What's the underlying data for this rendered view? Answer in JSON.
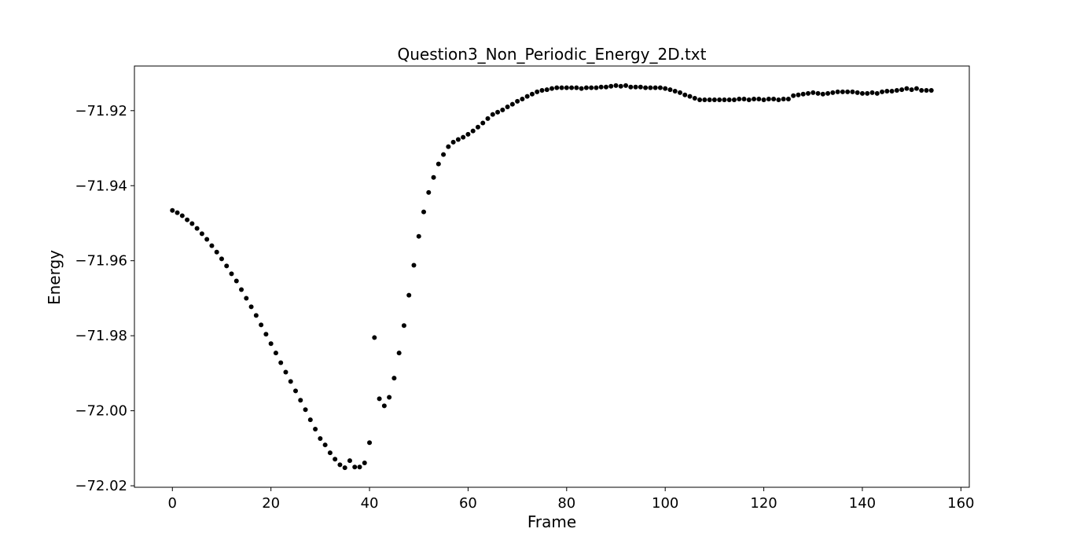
{
  "chart_data": {
    "type": "scatter",
    "title": "Question3_Non_Periodic_Energy_2D.txt",
    "x_label": "Frame",
    "y_label": "Energy",
    "color": "#000000",
    "x": [
      0,
      1,
      2,
      3,
      4,
      5,
      6,
      7,
      8,
      9,
      10,
      11,
      12,
      13,
      14,
      15,
      16,
      17,
      18,
      19,
      20,
      21,
      22,
      23,
      24,
      25,
      26,
      27,
      28,
      29,
      30,
      31,
      32,
      33,
      34,
      35,
      36,
      37,
      38,
      39,
      40,
      41,
      42,
      43,
      44,
      45,
      46,
      47,
      48,
      49,
      50,
      51,
      52,
      53,
      54,
      55,
      56,
      57,
      58,
      59,
      60,
      61,
      62,
      63,
      64,
      65,
      66,
      67,
      68,
      69,
      70,
      71,
      72,
      73,
      74,
      75,
      76,
      77,
      78,
      79,
      80,
      81,
      82,
      83,
      84,
      85,
      86,
      87,
      88,
      89,
      90,
      91,
      92,
      93,
      94,
      95,
      96,
      97,
      98,
      99,
      100,
      101,
      102,
      103,
      104,
      105,
      106,
      107,
      108,
      109,
      110,
      111,
      112,
      113,
      114,
      115,
      116,
      117,
      118,
      119,
      120,
      121,
      122,
      123,
      124,
      125,
      126,
      127,
      128,
      129,
      130,
      131,
      132,
      133,
      134,
      135,
      136,
      137,
      138,
      139,
      140,
      141,
      142,
      143,
      144,
      145,
      146,
      147,
      148,
      149,
      150,
      151,
      152,
      153,
      154
    ],
    "values": [
      -71.9466,
      -71.9472,
      -71.948,
      -71.9491,
      -71.9501,
      -71.9514,
      -71.9528,
      -71.9543,
      -71.956,
      -71.9577,
      -71.9595,
      -71.9614,
      -71.9635,
      -71.9654,
      -71.9677,
      -71.97,
      -71.9723,
      -71.9746,
      -71.9771,
      -71.9796,
      -71.9821,
      -71.9846,
      -71.9872,
      -71.9897,
      -71.9922,
      -71.9947,
      -71.9972,
      -71.9997,
      -72.0024,
      -72.0049,
      -72.0074,
      -72.0091,
      -72.0112,
      -72.0129,
      -72.0144,
      -72.0152,
      -72.0133,
      -72.015,
      -72.015,
      -72.0139,
      -72.0085,
      -71.9805,
      -71.9968,
      -71.9987,
      -71.9964,
      -71.9913,
      -71.9846,
      -71.9773,
      -71.9692,
      -71.9612,
      -71.9535,
      -71.947,
      -71.9418,
      -71.9378,
      -71.9342,
      -71.9317,
      -71.9296,
      -71.9284,
      -71.9277,
      -71.9271,
      -71.9263,
      -71.9254,
      -71.9244,
      -71.9233,
      -71.9221,
      -71.921,
      -71.9204,
      -71.9198,
      -71.919,
      -71.9183,
      -71.9175,
      -71.9169,
      -71.9162,
      -71.9156,
      -71.915,
      -71.9146,
      -71.9144,
      -71.9141,
      -71.9139,
      -71.9139,
      -71.9139,
      -71.9139,
      -71.9139,
      -71.9141,
      -71.9139,
      -71.9139,
      -71.9139,
      -71.9137,
      -71.9137,
      -71.9135,
      -71.9133,
      -71.9135,
      -71.9133,
      -71.9137,
      -71.9137,
      -71.9137,
      -71.9139,
      -71.9139,
      -71.9139,
      -71.9139,
      -71.9141,
      -71.9144,
      -71.9148,
      -71.9152,
      -71.9158,
      -71.9162,
      -71.9167,
      -71.9171,
      -71.9171,
      -71.9171,
      -71.9171,
      -71.9171,
      -71.9171,
      -71.9171,
      -71.9171,
      -71.9169,
      -71.9169,
      -71.9171,
      -71.9169,
      -71.9169,
      -71.9171,
      -71.9169,
      -71.9169,
      -71.9171,
      -71.9169,
      -71.9169,
      -71.916,
      -71.9158,
      -71.9156,
      -71.9154,
      -71.9152,
      -71.9154,
      -71.9156,
      -71.9154,
      -71.9152,
      -71.915,
      -71.915,
      -71.915,
      -71.915,
      -71.9152,
      -71.9154,
      -71.9154,
      -71.9152,
      -71.9154,
      -71.915,
      -71.9148,
      -71.9148,
      -71.9146,
      -71.9144,
      -71.9141,
      -71.9144,
      -71.9141,
      -71.9146,
      -71.9146,
      -71.9146
    ],
    "xlim": [
      -7.7,
      161.7
    ],
    "ylim": [
      -72.0204,
      -71.9081
    ],
    "xticks": [
      0,
      20,
      40,
      60,
      80,
      100,
      120,
      140,
      160
    ],
    "yticks": [
      {
        "value": -72.02,
        "label": "−72.02"
      },
      {
        "value": -72.0,
        "label": "−72.00"
      },
      {
        "value": -71.98,
        "label": "−71.98"
      },
      {
        "value": -71.96,
        "label": "−71.96"
      },
      {
        "value": -71.94,
        "label": "−71.94"
      },
      {
        "value": -71.92,
        "label": "−71.92"
      }
    ]
  }
}
